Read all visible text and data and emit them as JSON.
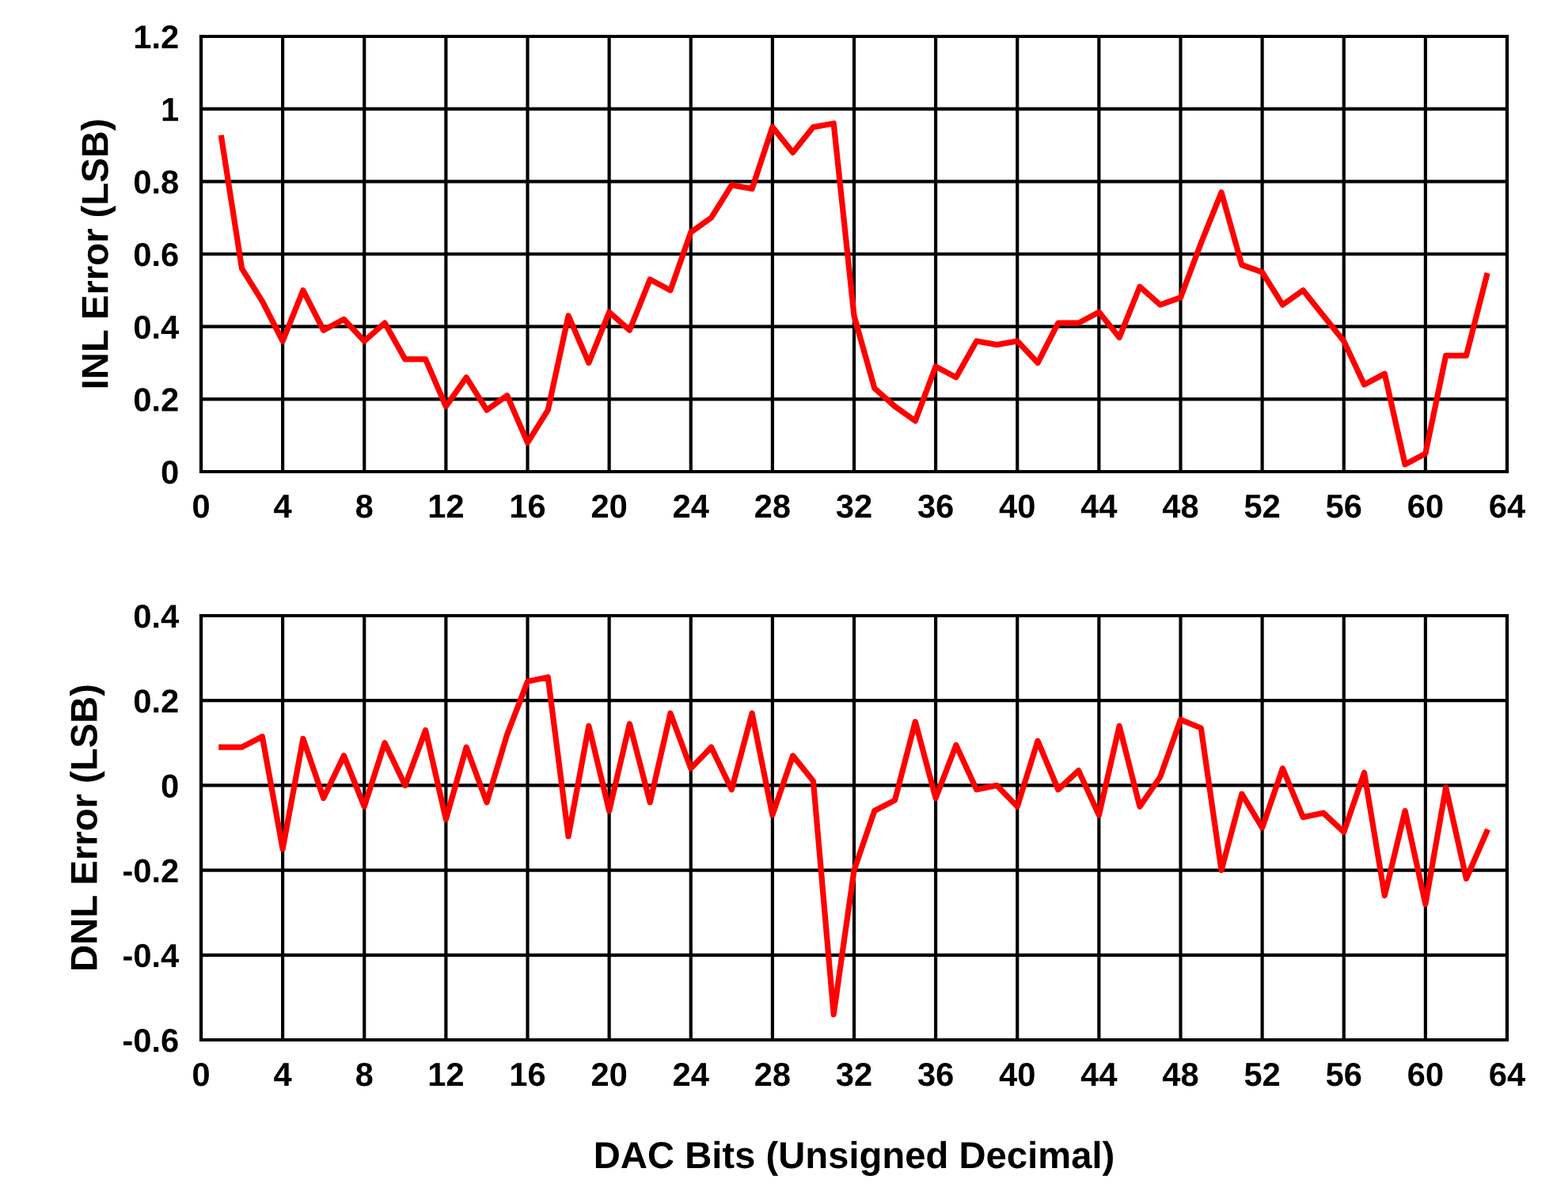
{
  "chart_data": [
    {
      "type": "line",
      "ylabel": "INL Error (LSB)",
      "x": [
        1,
        2,
        3,
        4,
        5,
        6,
        7,
        8,
        9,
        10,
        11,
        12,
        13,
        14,
        15,
        16,
        17,
        18,
        19,
        20,
        21,
        22,
        23,
        24,
        25,
        26,
        27,
        28,
        29,
        30,
        31,
        32,
        33,
        34,
        35,
        36,
        37,
        38,
        39,
        40,
        41,
        42,
        43,
        44,
        45,
        46,
        47,
        48,
        49,
        50,
        51,
        52,
        53,
        54,
        55,
        56,
        57,
        58,
        59,
        60,
        61,
        62,
        63
      ],
      "series": [
        {
          "color": "#ff0000",
          "values": [
            0.92,
            0.56,
            0.47,
            0.36,
            0.5,
            0.39,
            0.42,
            0.36,
            0.41,
            0.31,
            0.31,
            0.18,
            0.26,
            0.17,
            0.21,
            0.08,
            0.17,
            0.43,
            0.3,
            0.44,
            0.39,
            0.53,
            0.5,
            0.66,
            0.7,
            0.79,
            0.78,
            0.95,
            0.88,
            0.95,
            0.96,
            0.43,
            0.23,
            0.18,
            0.14,
            0.29,
            0.26,
            0.36,
            0.35,
            0.36,
            0.3,
            0.41,
            0.41,
            0.44,
            0.37,
            0.51,
            0.46,
            0.48,
            0.63,
            0.77,
            0.57,
            0.55,
            0.46,
            0.5,
            0.43,
            0.36,
            0.24,
            0.27,
            0.02,
            0.05,
            0.32,
            0.32,
            0.54
          ]
        }
      ],
      "xlim": [
        0,
        64
      ],
      "xticks": [
        0,
        4,
        8,
        12,
        16,
        20,
        24,
        28,
        32,
        36,
        40,
        44,
        48,
        52,
        56,
        60,
        64
      ],
      "ylim": [
        0,
        1.2
      ],
      "yticks": [
        0,
        0.2,
        0.4,
        0.6,
        0.8,
        1,
        1.2
      ],
      "grid": true,
      "marker": "none",
      "line_style": "solid"
    },
    {
      "type": "line",
      "ylabel": "DNL Error (LSB)",
      "xlabel": "DAC Bits (Unsigned Decimal)",
      "x": [
        1,
        2,
        3,
        4,
        5,
        6,
        7,
        8,
        9,
        10,
        11,
        12,
        13,
        14,
        15,
        16,
        17,
        18,
        19,
        20,
        21,
        22,
        23,
        24,
        25,
        26,
        27,
        28,
        29,
        30,
        31,
        32,
        33,
        34,
        35,
        36,
        37,
        38,
        39,
        40,
        41,
        42,
        43,
        44,
        45,
        46,
        47,
        48,
        49,
        50,
        51,
        52,
        53,
        54,
        55,
        56,
        57,
        58,
        59,
        60,
        61,
        62,
        63
      ],
      "series": [
        {
          "color": "#ff0000",
          "values": [
            0.09,
            0.09,
            0.115,
            -0.15,
            0.11,
            -0.03,
            0.07,
            -0.05,
            0.1,
            0.0,
            0.13,
            -0.08,
            0.09,
            -0.04,
            0.12,
            0.245,
            0.255,
            -0.12,
            0.14,
            -0.06,
            0.145,
            -0.04,
            0.17,
            0.04,
            0.09,
            -0.01,
            0.17,
            -0.07,
            0.07,
            0.01,
            -0.54,
            -0.2,
            -0.06,
            -0.035,
            0.15,
            -0.03,
            0.095,
            -0.01,
            0.0,
            -0.05,
            0.105,
            -0.01,
            0.035,
            -0.07,
            0.14,
            -0.05,
            0.02,
            0.155,
            0.135,
            -0.2,
            -0.02,
            -0.1,
            0.04,
            -0.075,
            -0.065,
            -0.11,
            0.03,
            -0.26,
            -0.06,
            -0.28,
            -0.005,
            -0.22,
            -0.11
          ]
        }
      ],
      "xlim": [
        0,
        64
      ],
      "xticks": [
        0,
        4,
        8,
        12,
        16,
        20,
        24,
        28,
        32,
        36,
        40,
        44,
        48,
        52,
        56,
        60,
        64
      ],
      "ylim": [
        -0.6,
        0.4
      ],
      "yticks": [
        -0.6,
        -0.4,
        -0.2,
        0,
        0.2,
        0.4
      ],
      "grid": true,
      "marker": "none",
      "line_style": "solid"
    }
  ]
}
